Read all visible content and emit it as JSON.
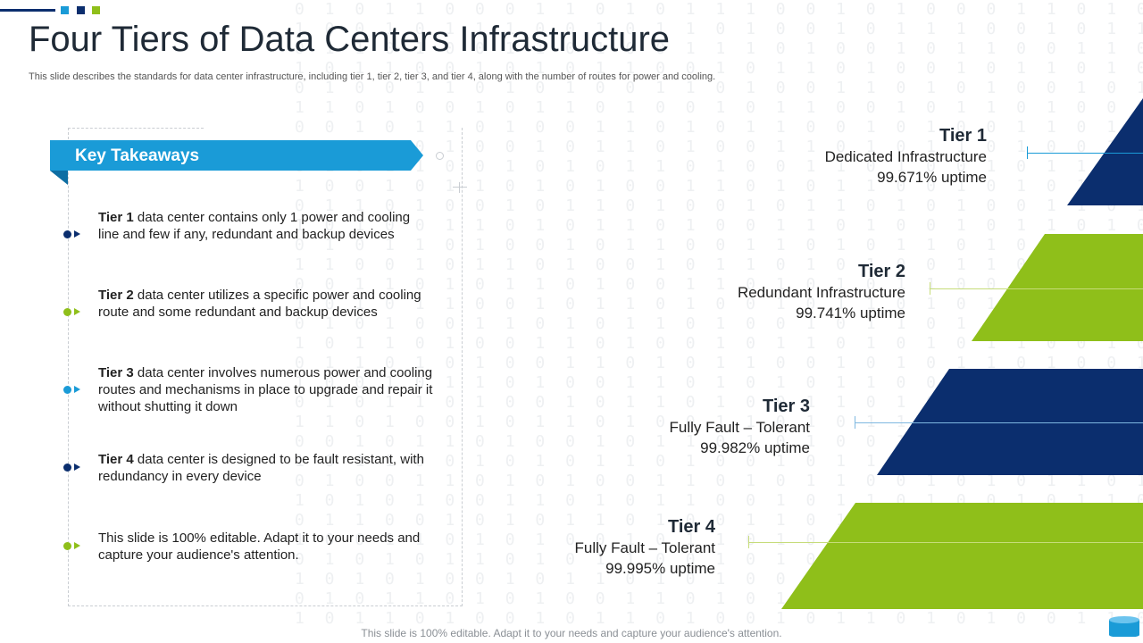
{
  "slide": {
    "title": "Four Tiers of Data Centers Infrastructure",
    "subtitle": "This slide describes the standards for data center infrastructure, including tier 1, tier 2, tier 3, and tier 4, along with the number of routes for power and cooling.",
    "footer": "This slide is 100% editable. Adapt it to your needs and capture your audience's attention."
  },
  "colors": {
    "navy": "#0b2e6e",
    "green": "#8fbf1a",
    "blue": "#1a9bd7"
  },
  "takeaways": {
    "heading": "Key Takeaways",
    "items": [
      {
        "bold": "Tier 1",
        "text": " data center contains only 1 power and cooling line and few if any, redundant and backup devices",
        "bullet_color": "#0b2e6e"
      },
      {
        "bold": "Tier 2",
        "text": " data center utilizes a specific power and cooling route and some redundant and backup devices",
        "bullet_color": "#8fbf1a"
      },
      {
        "bold": "Tier 3",
        "text": " data center involves numerous power and cooling routes and mechanisms in place to upgrade and repair it without shutting it down",
        "bullet_color": "#1a9bd7"
      },
      {
        "bold": "Tier 4",
        "text": " data center is designed to be fault resistant, with redundancy in every device",
        "bullet_color": "#0b2e6e"
      },
      {
        "bold": "",
        "text": "This slide is 100% editable. Adapt it to your needs and capture your audience's attention.",
        "bullet_color": "#8fbf1a"
      }
    ]
  },
  "tiers": [
    {
      "name": "Tier 1",
      "description": "Dedicated Infrastructure",
      "uptime": "99.671% uptime",
      "color": "#0b2e6e"
    },
    {
      "name": "Tier 2",
      "description": "Redundant Infrastructure",
      "uptime": "99.741% uptime",
      "color": "#8fbf1a"
    },
    {
      "name": "Tier 3",
      "description": "Fully Fault – Tolerant",
      "uptime": "99.982% uptime",
      "color": "#0b2e6e"
    },
    {
      "name": "Tier 4",
      "description": "Fully Fault – Tolerant",
      "uptime": "99.995% uptime",
      "color": "#8fbf1a"
    }
  ],
  "icons": {
    "footer_icon": "database-icon"
  }
}
